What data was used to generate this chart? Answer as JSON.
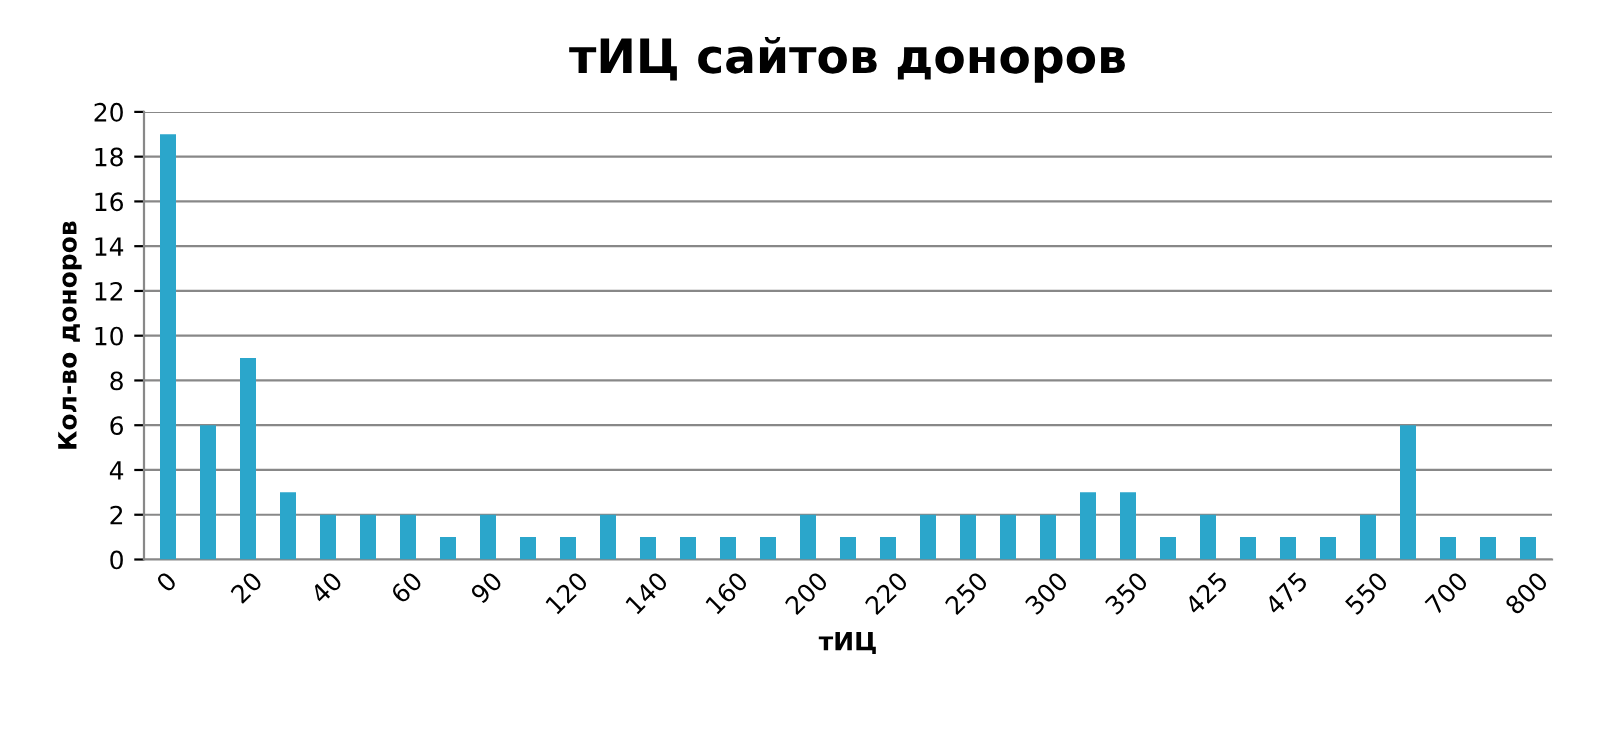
{
  "chart_data": {
    "type": "bar",
    "title": "тИЦ сайтов доноров",
    "xlabel": "тИЦ",
    "ylabel": "Кол-во доноров",
    "categories": [
      "0",
      null,
      "20",
      null,
      "40",
      null,
      "60",
      null,
      "90",
      null,
      "120",
      null,
      "140",
      null,
      "160",
      null,
      "200",
      null,
      "220",
      null,
      "250",
      null,
      "300",
      null,
      "350",
      null,
      "425",
      null,
      "475",
      null,
      "550",
      null,
      "700",
      null,
      "800"
    ],
    "values": [
      19,
      6,
      9,
      3,
      2,
      2,
      2,
      1,
      2,
      1,
      1,
      2,
      1,
      1,
      1,
      1,
      2,
      1,
      1,
      2,
      2,
      2,
      2,
      3,
      3,
      1,
      2,
      1,
      1,
      1,
      2,
      6,
      1,
      1,
      1
    ],
    "color": "#2ba6cb",
    "ylim": [
      0,
      20
    ],
    "yticks": [
      0,
      2,
      4,
      6,
      8,
      10,
      12,
      14,
      16,
      18,
      20
    ],
    "grid": "y",
    "legend": false
  }
}
